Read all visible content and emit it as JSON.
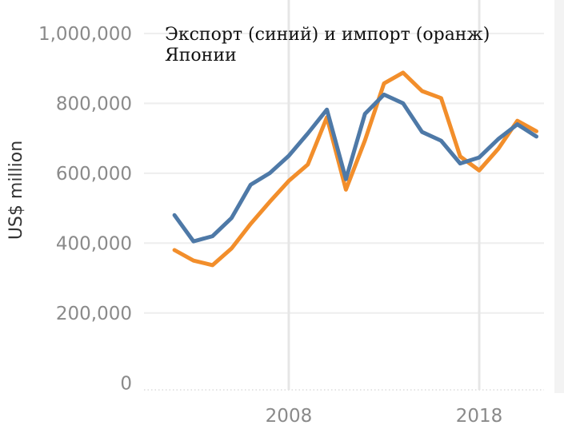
{
  "chart_data": {
    "type": "line",
    "title_lines": [
      "Экспорт (синий) и импорт (оранж)",
      "Японии"
    ],
    "xlabel": "",
    "ylabel": "US$ million",
    "xlim": [
      2000.4,
      2021.4
    ],
    "ylim": [
      -20000,
      1050000
    ],
    "y_ticks": [
      0,
      200000,
      400000,
      600000,
      800000,
      1000000
    ],
    "y_tick_labels": [
      "0",
      "200,000",
      "400,000",
      "600,000",
      "800,000",
      "1,000,000"
    ],
    "x_ticks": [
      2008,
      2018
    ],
    "x_tick_labels": [
      "2008",
      "2018"
    ],
    "grid": true,
    "x": [
      2002,
      2003,
      2004,
      2005,
      2006,
      2007,
      2008,
      2009,
      2010,
      2011,
      2012,
      2013,
      2014,
      2015,
      2016,
      2017,
      2018,
      2019,
      2020,
      2021
    ],
    "series": [
      {
        "color": "#4e79a7",
        "values": [
          480000,
          405000,
          420000,
          472000,
          567000,
          600000,
          650000,
          714000,
          782000,
          583000,
          770000,
          825000,
          800000,
          718000,
          693000,
          628000,
          645000,
          698000,
          740000,
          705000
        ]
      },
      {
        "color": "#f28e2b",
        "values": [
          380000,
          350000,
          337000,
          385000,
          455000,
          518000,
          578000,
          625000,
          760000,
          553000,
          694000,
          857000,
          888000,
          835000,
          815000,
          648000,
          608000,
          670000,
          750000,
          720000
        ]
      }
    ]
  }
}
